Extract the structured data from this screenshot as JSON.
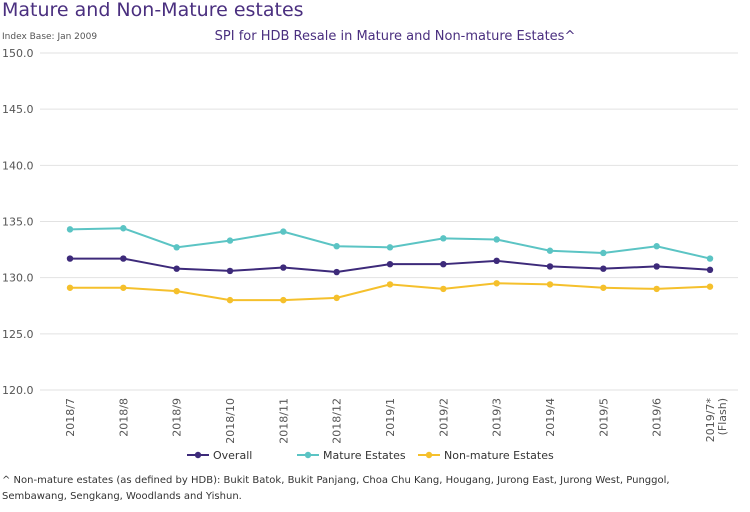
{
  "chart_data": {
    "type": "line",
    "page_title": "Mature and Non-Mature estates",
    "subtitle": "Index Base: Jan 2009",
    "title": "SPI for HDB Resale in Mature and Non-mature Estates^",
    "categories": [
      "2018/7",
      "2018/8",
      "2018/9",
      "2018/10",
      "2018/11",
      "2018/12",
      "2019/1",
      "2019/2",
      "2019/3",
      "2019/4",
      "2019/5",
      "2019/6",
      "2019/7*"
    ],
    "category_note": "(Flash)",
    "series": [
      {
        "name": "Overall",
        "color": "#3d2a7a",
        "values": [
          131.7,
          131.7,
          130.8,
          130.6,
          130.9,
          130.5,
          131.2,
          131.2,
          131.5,
          131.0,
          130.8,
          131.0,
          130.7
        ]
      },
      {
        "name": "Mature Estates",
        "color": "#5bc4c4",
        "values": [
          134.3,
          134.4,
          132.7,
          133.3,
          134.1,
          132.8,
          132.7,
          133.5,
          133.4,
          132.4,
          132.2,
          132.8,
          131.7
        ]
      },
      {
        "name": "Non-mature Estates",
        "color": "#f5c02c",
        "values": [
          129.1,
          129.1,
          128.8,
          128.0,
          128.0,
          128.2,
          129.4,
          129.0,
          129.5,
          129.4,
          129.1,
          129.0,
          129.2
        ]
      }
    ],
    "ylim": [
      120,
      150
    ],
    "yticks": [
      {
        "value": 120,
        "label": "120.0"
      },
      {
        "value": 125,
        "label": "125.0"
      },
      {
        "value": 130,
        "label": "130.0"
      },
      {
        "value": 135,
        "label": "135.0"
      },
      {
        "value": 140,
        "label": "140.0"
      },
      {
        "value": 145,
        "label": "145.0"
      },
      {
        "value": 150,
        "label": "150.0"
      }
    ],
    "grid": true,
    "footnote": [
      "^ Non-mature estates (as defined by HDB): Bukit Batok, Bukit Panjang, Choa Chu Kang, Hougang, Jurong East, Jurong West, Punggol,",
      "Sembawang, Sengkang, Woodlands and Yishun."
    ]
  }
}
